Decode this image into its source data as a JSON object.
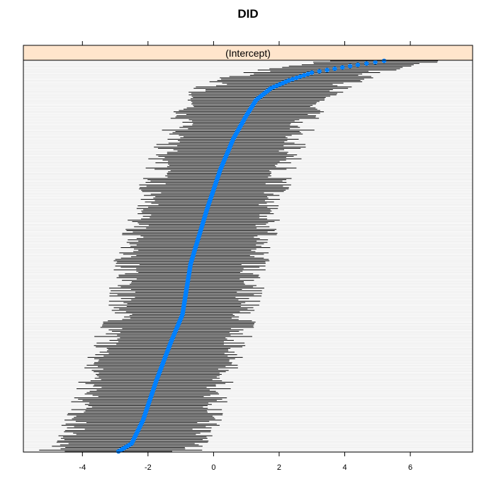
{
  "chart_data": {
    "type": "dotplot-caterpillar",
    "title": "DID",
    "panel_label": "(Intercept)",
    "xlim": [
      -5.8,
      7.9
    ],
    "x_ticks": [
      -4,
      -2,
      0,
      2,
      4,
      6
    ],
    "x_tick_labels": [
      "-4",
      "-2",
      "0",
      "2",
      "4",
      "6"
    ],
    "n_levels": 300,
    "center_profile": [
      [
        0.0,
        -2.9
      ],
      [
        0.02,
        -2.5
      ],
      [
        0.08,
        -2.15
      ],
      [
        0.18,
        -1.75
      ],
      [
        0.28,
        -1.3
      ],
      [
        0.35,
        -0.95
      ],
      [
        0.48,
        -0.7
      ],
      [
        0.55,
        -0.45
      ],
      [
        0.62,
        -0.2
      ],
      [
        0.72,
        0.2
      ],
      [
        0.8,
        0.6
      ],
      [
        0.86,
        1.0
      ],
      [
        0.9,
        1.3
      ],
      [
        0.93,
        1.75
      ],
      [
        0.95,
        2.3
      ],
      [
        0.97,
        3.0
      ],
      [
        0.99,
        4.4
      ],
      [
        1.0,
        5.2
      ]
    ],
    "halfwidth_profile": [
      [
        0.0,
        2.1
      ],
      [
        0.1,
        2.0
      ],
      [
        0.5,
        1.95
      ],
      [
        0.9,
        1.9
      ],
      [
        0.95,
        2.0
      ],
      [
        1.0,
        1.6
      ]
    ],
    "colors": {
      "strip_fill": "#ffe5cc",
      "point": "#0080ff",
      "interval": "#000000",
      "grid": "#e6e6e6"
    }
  }
}
